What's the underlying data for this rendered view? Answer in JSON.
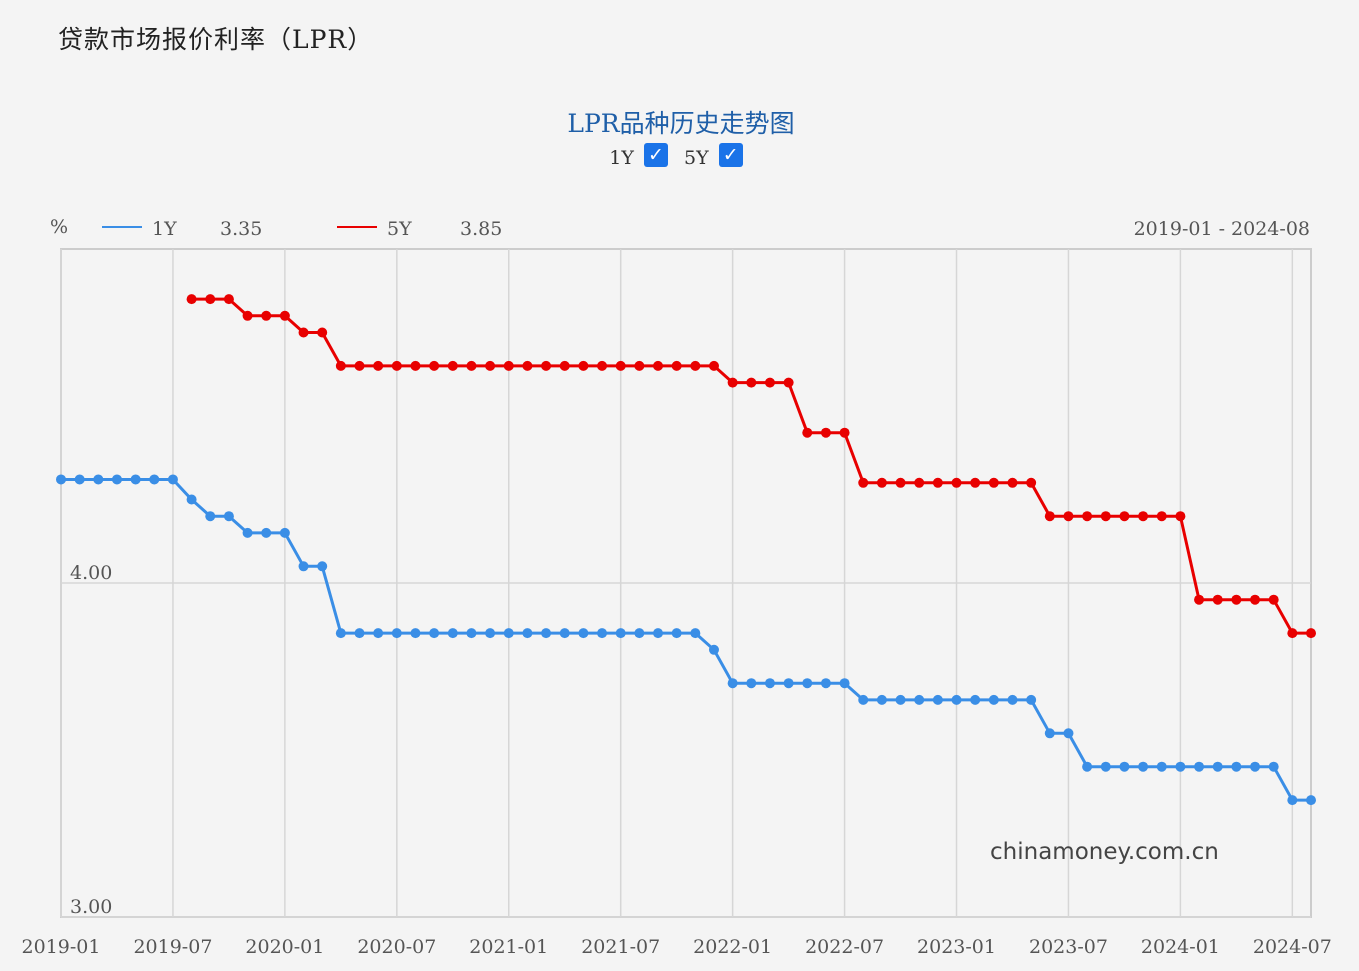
{
  "page_title": "贷款市场报价利率（LPR）",
  "chart_data": {
    "type": "line",
    "title": "LPR品种历史走势图",
    "unit_label": "%",
    "date_range": "2019-01 - 2024-08",
    "watermark": "chinamoney.com.cn",
    "toggles": [
      {
        "label": "1Y",
        "checked": true
      },
      {
        "label": "5Y",
        "checked": true
      }
    ],
    "x": [
      "2019-01",
      "2019-02",
      "2019-03",
      "2019-04",
      "2019-05",
      "2019-06",
      "2019-07",
      "2019-08",
      "2019-09",
      "2019-10",
      "2019-11",
      "2019-12",
      "2020-01",
      "2020-02",
      "2020-03",
      "2020-04",
      "2020-05",
      "2020-06",
      "2020-07",
      "2020-08",
      "2020-09",
      "2020-10",
      "2020-11",
      "2020-12",
      "2021-01",
      "2021-02",
      "2021-03",
      "2021-04",
      "2021-05",
      "2021-06",
      "2021-07",
      "2021-08",
      "2021-09",
      "2021-10",
      "2021-11",
      "2021-12",
      "2022-01",
      "2022-02",
      "2022-03",
      "2022-04",
      "2022-05",
      "2022-06",
      "2022-07",
      "2022-08",
      "2022-09",
      "2022-10",
      "2022-11",
      "2022-12",
      "2023-01",
      "2023-02",
      "2023-03",
      "2023-04",
      "2023-05",
      "2023-06",
      "2023-07",
      "2023-08",
      "2023-09",
      "2023-10",
      "2023-11",
      "2023-12",
      "2024-01",
      "2024-02",
      "2024-03",
      "2024-04",
      "2024-05",
      "2024-06",
      "2024-07",
      "2024-08"
    ],
    "series": [
      {
        "name": "1Y",
        "color": "#3a8ee6",
        "latest": "3.35",
        "values": [
          4.31,
          4.31,
          4.31,
          4.31,
          4.31,
          4.31,
          4.31,
          4.25,
          4.2,
          4.2,
          4.15,
          4.15,
          4.15,
          4.05,
          4.05,
          3.85,
          3.85,
          3.85,
          3.85,
          3.85,
          3.85,
          3.85,
          3.85,
          3.85,
          3.85,
          3.85,
          3.85,
          3.85,
          3.85,
          3.85,
          3.85,
          3.85,
          3.85,
          3.85,
          3.85,
          3.8,
          3.7,
          3.7,
          3.7,
          3.7,
          3.7,
          3.7,
          3.7,
          3.65,
          3.65,
          3.65,
          3.65,
          3.65,
          3.65,
          3.65,
          3.65,
          3.65,
          3.65,
          3.55,
          3.55,
          3.45,
          3.45,
          3.45,
          3.45,
          3.45,
          3.45,
          3.45,
          3.45,
          3.45,
          3.45,
          3.45,
          3.35,
          3.35
        ]
      },
      {
        "name": "5Y",
        "color": "#e80000",
        "latest": "3.85",
        "values": [
          null,
          null,
          null,
          null,
          null,
          null,
          null,
          4.85,
          4.85,
          4.85,
          4.8,
          4.8,
          4.8,
          4.75,
          4.75,
          4.65,
          4.65,
          4.65,
          4.65,
          4.65,
          4.65,
          4.65,
          4.65,
          4.65,
          4.65,
          4.65,
          4.65,
          4.65,
          4.65,
          4.65,
          4.65,
          4.65,
          4.65,
          4.65,
          4.65,
          4.65,
          4.6,
          4.6,
          4.6,
          4.6,
          4.45,
          4.45,
          4.45,
          4.3,
          4.3,
          4.3,
          4.3,
          4.3,
          4.3,
          4.3,
          4.3,
          4.3,
          4.3,
          4.2,
          4.2,
          4.2,
          4.2,
          4.2,
          4.2,
          4.2,
          4.2,
          3.95,
          3.95,
          3.95,
          3.95,
          3.95,
          3.85,
          3.85
        ]
      }
    ],
    "x_ticks": [
      "2019-01",
      "2019-07",
      "2020-01",
      "2020-07",
      "2021-01",
      "2021-07",
      "2022-01",
      "2022-07",
      "2023-01",
      "2023-07",
      "2024-01",
      "2024-07"
    ],
    "y_ticks": [
      "4.00",
      "3.00"
    ],
    "ylim": [
      3.0,
      5.0
    ],
    "grid": true,
    "legend": "top-left"
  }
}
